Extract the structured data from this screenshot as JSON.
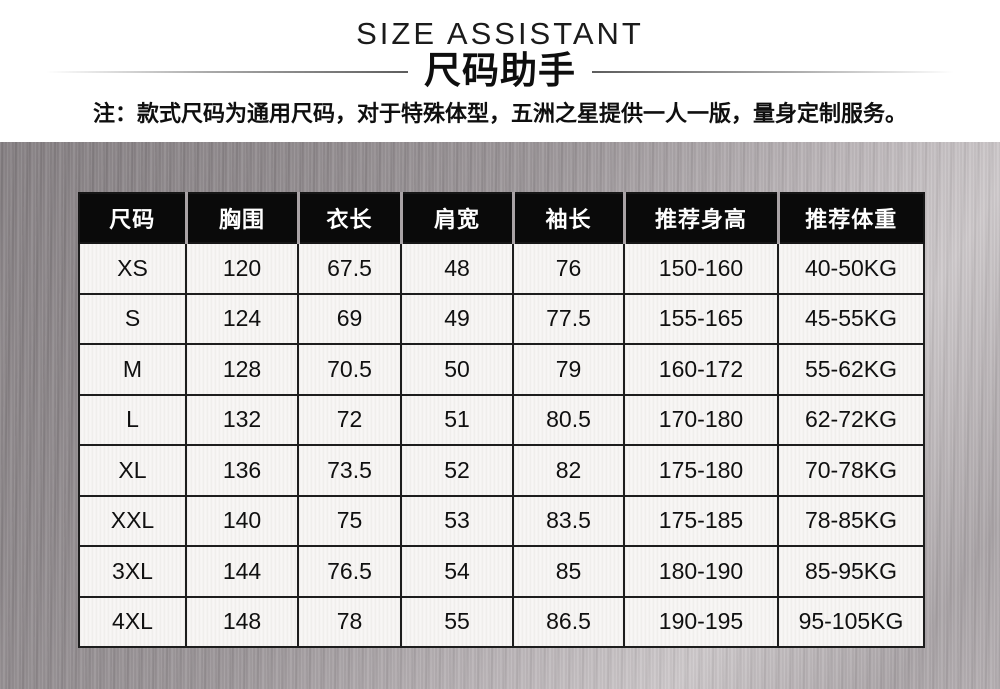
{
  "header": {
    "title_en": "SIZE ASSISTANT",
    "title_zh": "尺码助手",
    "note": "注：款式尺码为通用尺码，对于特殊体型，五洲之星提供一人一版，量身定制服务。"
  },
  "chart_data": {
    "type": "table",
    "title": "SIZE ASSISTANT 尺码助手",
    "columns": [
      "尺码",
      "胸围",
      "衣长",
      "肩宽",
      "袖长",
      "推荐身高",
      "推荐体重"
    ],
    "rows": [
      [
        "XS",
        "120",
        "67.5",
        "48",
        "76",
        "150-160",
        "40-50KG"
      ],
      [
        "S",
        "124",
        "69",
        "49",
        "77.5",
        "155-165",
        "45-55KG"
      ],
      [
        "M",
        "128",
        "70.5",
        "50",
        "79",
        "160-172",
        "55-62KG"
      ],
      [
        "L",
        "132",
        "72",
        "51",
        "80.5",
        "170-180",
        "62-72KG"
      ],
      [
        "XL",
        "136",
        "73.5",
        "52",
        "82",
        "175-180",
        "70-78KG"
      ],
      [
        "XXL",
        "140",
        "75",
        "53",
        "83.5",
        "175-185",
        "78-85KG"
      ],
      [
        "3XL",
        "144",
        "76.5",
        "54",
        "85",
        "180-190",
        "85-95KG"
      ],
      [
        "4XL",
        "148",
        "78",
        "55",
        "86.5",
        "190-195",
        "95-105KG"
      ]
    ]
  },
  "colors": {
    "header_cell_bg": "#0a0a0a",
    "header_cell_text": "#ffffff",
    "body_cell_bg": "#f3f1ef",
    "table_border": "#1d1d1d",
    "metal_base": "#9b9598",
    "metal_light": "#cdc8ca",
    "divider_line": "#5d5d5d"
  }
}
